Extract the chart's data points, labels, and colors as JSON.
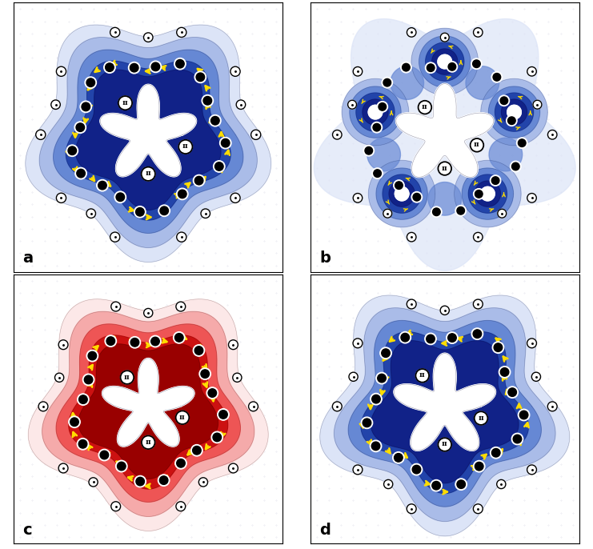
{
  "fig_width": 7.41,
  "fig_height": 6.86,
  "dpi": 100,
  "panel_labels": [
    "a",
    "b",
    "c",
    "d"
  ],
  "panel_label_fontsize": 14,
  "background_color": "#ffffff",
  "blue_colors": [
    "#dce4f7",
    "#aabce8",
    "#6688d4",
    "#2244aa",
    "#112288"
  ],
  "red_colors": [
    "#fce8e8",
    "#f5aaaa",
    "#ee5555",
    "#cc1111",
    "#990000"
  ],
  "arrow_color": "#ffdd00",
  "atom_color": "#000000",
  "contour_line_color": "#000033",
  "white_contour": "#ffffff"
}
